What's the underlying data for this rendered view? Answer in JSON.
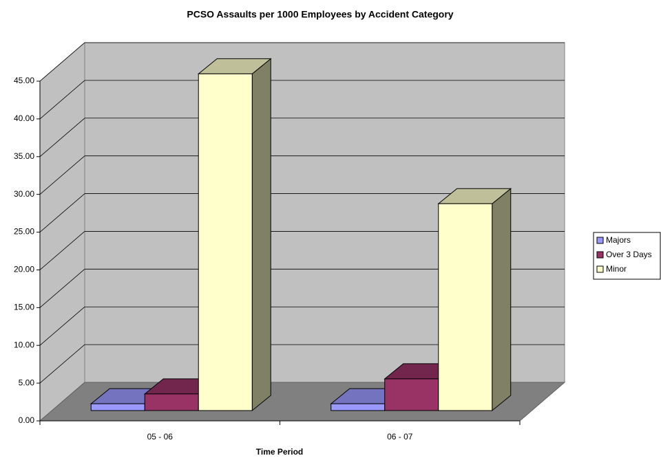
{
  "chart_data": {
    "type": "bar3d",
    "title": "PCSO Assaults per 1000 Employees by Accident Category",
    "x_label": "Time Period",
    "categories": [
      "05 - 06",
      "06 - 07"
    ],
    "series": [
      {
        "name": "Majors",
        "color": "#9999ff",
        "values": [
          0.9,
          0.9
        ]
      },
      {
        "name": "Over 3 Days",
        "color": "#993366",
        "values": [
          2.2,
          4.2
        ]
      },
      {
        "name": "Minor",
        "color": "#ffffcc",
        "values": [
          44.6,
          27.4
        ]
      }
    ],
    "ylim": [
      0,
      45
    ],
    "yticks": [
      {
        "value": 0,
        "label": "0.00"
      },
      {
        "value": 5,
        "label": "5.00"
      },
      {
        "value": 10,
        "label": "10.00"
      },
      {
        "value": 15,
        "label": "15.00"
      },
      {
        "value": 20,
        "label": "20.00"
      },
      {
        "value": 25,
        "label": "25.00"
      },
      {
        "value": 30,
        "label": "30.00"
      },
      {
        "value": 35,
        "label": "35.00"
      },
      {
        "value": 40,
        "label": "40.00"
      },
      {
        "value": 45,
        "label": "45.00"
      }
    ],
    "grid": true,
    "legend": "right"
  }
}
